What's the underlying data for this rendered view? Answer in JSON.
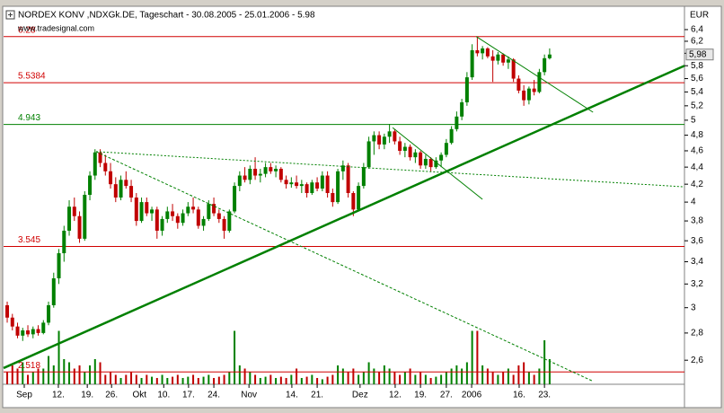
{
  "chart_data": {
    "type": "candlestick",
    "title": "NORDEX KONV ,NDXGk.DE, Tageschart - 30.08.2005 - 25.01.2006 - 5.98",
    "subtitle": "www.tradesignal.com",
    "y_axis_label": "EUR",
    "log_scale": true,
    "up_color": "#008000",
    "down_color": "#c00000",
    "xlim": [
      -0.7,
      131.1
    ],
    "ylim": [
      2.435,
      6.51
    ],
    "yticks": [
      {
        "value": 6.4,
        "label": "6,4"
      },
      {
        "value": 6.2,
        "label": "6,2"
      },
      6,
      {
        "value": 5.8,
        "label": "5,8"
      },
      {
        "value": 5.6,
        "label": "5,6"
      },
      {
        "value": 5.4,
        "label": "5,4"
      },
      {
        "value": 5.2,
        "label": "5,2"
      },
      5,
      {
        "value": 4.8,
        "label": "4,8"
      },
      {
        "value": 4.6,
        "label": "4,6"
      },
      {
        "value": 4.4,
        "label": "4,4"
      },
      {
        "value": 4.2,
        "label": "4,2"
      },
      4,
      {
        "value": 3.8,
        "label": "3,8"
      },
      {
        "value": 3.6,
        "label": "3,6"
      },
      {
        "value": 3.4,
        "label": "3,4"
      },
      {
        "value": 3.2,
        "label": "3,2"
      },
      3,
      {
        "value": 2.8,
        "label": "2,8"
      },
      {
        "value": 2.6,
        "label": "2,6"
      }
    ],
    "xticks": [
      {
        "value": 3.3,
        "label": "Sep"
      },
      {
        "value": 9.9,
        "label": "12."
      },
      {
        "value": 15.5,
        "label": "19."
      },
      {
        "value": 20.2,
        "label": "26."
      },
      {
        "value": 25.6,
        "label": "Okt"
      },
      {
        "value": 30.3,
        "label": "10."
      },
      {
        "value": 35.1,
        "label": "17."
      },
      {
        "value": 40,
        "label": "24."
      },
      {
        "value": 46.8,
        "label": "Nov"
      },
      {
        "value": 55.1,
        "label": "14."
      },
      {
        "value": 60,
        "label": "21."
      },
      {
        "value": 68.3,
        "label": "Dez"
      },
      {
        "value": 75.1,
        "label": "12."
      },
      {
        "value": 80,
        "label": "19."
      },
      {
        "value": 85,
        "label": "27."
      },
      {
        "value": 89.9,
        "label": "2006"
      },
      {
        "value": 99.1,
        "label": "16."
      },
      {
        "value": 104,
        "label": "23."
      }
    ],
    "last_price": {
      "value": 5.98,
      "label": "5,98"
    },
    "levels": [
      {
        "value": 6.28,
        "color": "#d00000"
      },
      {
        "value": 5.5384,
        "color": "#d00000"
      },
      {
        "value": 4.943,
        "color": "#008000"
      },
      {
        "value": 3.545,
        "color": "#d00000"
      },
      {
        "value": 2.518,
        "color": "#d00000"
      }
    ],
    "trendlines": [
      {
        "from": [
          -0.7,
          2.545
        ],
        "to": [
          131.1,
          5.8
        ],
        "color": "#008000",
        "width": 2.5,
        "dash": "none"
      },
      {
        "from": [
          17.2,
          4.59
        ],
        "to": [
          113.4,
          2.455
        ],
        "color": "#008000",
        "width": 1,
        "dash": "3,2"
      },
      {
        "from": [
          17.2,
          4.59
        ],
        "to": [
          131.1,
          4.17
        ],
        "color": "#008000",
        "width": 1,
        "dash": "2,2"
      },
      {
        "from": [
          90.8,
          6.28
        ],
        "to": [
          113.4,
          5.11
        ],
        "color": "#008000",
        "width": 1,
        "dash": "none"
      },
      {
        "from": [
          74.6,
          4.9
        ],
        "to": [
          92,
          4.03
        ],
        "color": "#008000",
        "width": 1,
        "dash": "none"
      }
    ],
    "candles": [
      [
        3.02,
        3.05,
        2.88,
        2.92
      ],
      [
        2.92,
        2.95,
        2.82,
        2.85
      ],
      [
        2.85,
        2.88,
        2.76,
        2.78
      ],
      [
        2.78,
        2.84,
        2.74,
        2.82
      ],
      [
        2.82,
        2.86,
        2.77,
        2.79
      ],
      [
        2.79,
        2.85,
        2.76,
        2.83
      ],
      [
        2.83,
        2.86,
        2.78,
        2.8
      ],
      [
        2.8,
        2.9,
        2.79,
        2.88
      ],
      [
        2.88,
        3.05,
        2.86,
        3.02
      ],
      [
        3.02,
        3.3,
        3,
        3.25
      ],
      [
        3.25,
        3.52,
        3.2,
        3.48
      ],
      [
        3.48,
        3.75,
        3.4,
        3.7
      ],
      [
        3.7,
        4.02,
        3.65,
        3.95
      ],
      [
        3.95,
        4.05,
        3.8,
        3.85
      ],
      [
        3.85,
        3.9,
        3.58,
        3.62
      ],
      [
        3.62,
        4.12,
        3.6,
        4.08
      ],
      [
        4.08,
        4.35,
        4.02,
        4.3
      ],
      [
        4.3,
        4.62,
        4.25,
        4.58
      ],
      [
        4.58,
        4.62,
        4.4,
        4.45
      ],
      [
        4.45,
        4.55,
        4.3,
        4.35
      ],
      [
        4.35,
        4.45,
        4.15,
        4.2
      ],
      [
        4.2,
        4.28,
        4,
        4.05
      ],
      [
        4.05,
        4.3,
        4.02,
        4.25
      ],
      [
        4.25,
        4.35,
        4.15,
        4.18
      ],
      [
        4.18,
        4.25,
        4,
        4.05
      ],
      [
        4.05,
        4.1,
        3.75,
        3.8
      ],
      [
        3.8,
        4.05,
        3.78,
        4
      ],
      [
        4,
        4.05,
        3.85,
        3.88
      ],
      [
        3.88,
        3.95,
        3.8,
        3.92
      ],
      [
        3.92,
        3.95,
        3.62,
        3.7
      ],
      [
        3.7,
        3.85,
        3.65,
        3.82
      ],
      [
        3.82,
        3.95,
        3.78,
        3.9
      ],
      [
        3.9,
        3.98,
        3.8,
        3.85
      ],
      [
        3.85,
        3.88,
        3.72,
        3.78
      ],
      [
        3.78,
        3.92,
        3.75,
        3.88
      ],
      [
        3.88,
        4,
        3.85,
        3.95
      ],
      [
        3.95,
        4.05,
        3.88,
        3.92
      ],
      [
        3.92,
        3.95,
        3.72,
        3.75
      ],
      [
        3.75,
        3.85,
        3.7,
        3.82
      ],
      [
        3.82,
        4.02,
        3.8,
        3.98
      ],
      [
        3.98,
        4.05,
        3.85,
        3.88
      ],
      [
        3.88,
        3.92,
        3.78,
        3.82
      ],
      [
        3.82,
        3.85,
        3.62,
        3.7
      ],
      [
        3.7,
        3.92,
        3.68,
        3.9
      ],
      [
        3.9,
        4.22,
        3.88,
        4.18
      ],
      [
        4.18,
        4.35,
        4.12,
        4.3
      ],
      [
        4.3,
        4.4,
        4.22,
        4.25
      ],
      [
        4.25,
        4.42,
        4.2,
        4.38
      ],
      [
        4.38,
        4.52,
        4.25,
        4.3
      ],
      [
        4.3,
        4.38,
        4.22,
        4.32
      ],
      [
        4.32,
        4.45,
        4.28,
        4.4
      ],
      [
        4.4,
        4.45,
        4.32,
        4.35
      ],
      [
        4.35,
        4.42,
        4.28,
        4.38
      ],
      [
        4.38,
        4.4,
        4.22,
        4.25
      ],
      [
        4.25,
        4.3,
        4.15,
        4.2
      ],
      [
        4.2,
        4.28,
        4.16,
        4.22
      ],
      [
        4.22,
        4.3,
        4.15,
        4.18
      ],
      [
        4.18,
        4.25,
        4.1,
        4.2
      ],
      [
        4.2,
        4.22,
        4.05,
        4.1
      ],
      [
        4.1,
        4.25,
        4.08,
        4.22
      ],
      [
        4.22,
        4.28,
        4.12,
        4.15
      ],
      [
        4.15,
        4.35,
        4.12,
        4.3
      ],
      [
        4.3,
        4.35,
        4.05,
        4.1
      ],
      [
        4.1,
        4.15,
        3.95,
        4
      ],
      [
        4,
        4.38,
        3.98,
        4.35
      ],
      [
        4.35,
        4.48,
        4.25,
        4.42
      ],
      [
        4.42,
        4.45,
        4.05,
        4.1
      ],
      [
        4.1,
        4.12,
        3.85,
        3.92
      ],
      [
        3.92,
        4.22,
        3.9,
        4.18
      ],
      [
        4.18,
        4.45,
        4.15,
        4.4
      ],
      [
        4.4,
        4.78,
        4.38,
        4.72
      ],
      [
        4.72,
        4.85,
        4.55,
        4.8
      ],
      [
        4.8,
        4.85,
        4.62,
        4.68
      ],
      [
        4.68,
        4.82,
        4.62,
        4.78
      ],
      [
        4.78,
        4.95,
        4.7,
        4.85
      ],
      [
        4.85,
        4.88,
        4.68,
        4.72
      ],
      [
        4.72,
        4.78,
        4.55,
        4.6
      ],
      [
        4.6,
        4.7,
        4.52,
        4.65
      ],
      [
        4.65,
        4.68,
        4.48,
        4.52
      ],
      [
        4.52,
        4.62,
        4.45,
        4.58
      ],
      [
        4.58,
        4.6,
        4.38,
        4.42
      ],
      [
        4.42,
        4.55,
        4.38,
        4.5
      ],
      [
        4.5,
        4.52,
        4.35,
        4.4
      ],
      [
        4.4,
        4.52,
        4.38,
        4.48
      ],
      [
        4.48,
        4.58,
        4.4,
        4.55
      ],
      [
        4.55,
        4.75,
        4.52,
        4.7
      ],
      [
        4.7,
        4.92,
        4.68,
        4.88
      ],
      [
        4.88,
        5.12,
        4.85,
        5.05
      ],
      [
        5.05,
        5.3,
        5,
        5.25
      ],
      [
        5.25,
        5.7,
        5.2,
        5.62
      ],
      [
        5.62,
        6.15,
        5.58,
        6.05
      ],
      [
        6.05,
        6.28,
        5.95,
        6
      ],
      [
        6,
        6.12,
        5.9,
        6.08
      ],
      [
        6.08,
        6.1,
        5.92,
        5.95
      ],
      [
        5.95,
        6.05,
        5.55,
        5.88
      ],
      [
        5.88,
        6.02,
        5.82,
        5.98
      ],
      [
        5.98,
        6,
        5.8,
        5.85
      ],
      [
        5.85,
        5.95,
        5.75,
        5.9
      ],
      [
        5.9,
        5.92,
        5.55,
        5.6
      ],
      [
        5.6,
        5.65,
        5.38,
        5.42
      ],
      [
        5.42,
        5.5,
        5.2,
        5.28
      ],
      [
        5.28,
        5.48,
        5.22,
        5.45
      ],
      [
        5.45,
        5.58,
        5.35,
        5.4
      ],
      [
        5.4,
        5.75,
        5.38,
        5.7
      ],
      [
        5.7,
        5.98,
        5.65,
        5.92
      ],
      [
        5.92,
        6.08,
        5.9,
        5.98
      ]
    ],
    "volume_lim": [
      0,
      100
    ],
    "volume": [
      20,
      30,
      25,
      35,
      15,
      20,
      25,
      25,
      45,
      30,
      85,
      40,
      35,
      25,
      30,
      20,
      30,
      40,
      35,
      15,
      20,
      15,
      10,
      15,
      20,
      15,
      10,
      15,
      12,
      10,
      15,
      10,
      12,
      15,
      10,
      12,
      15,
      10,
      12,
      15,
      10,
      12,
      15,
      20,
      85,
      30,
      25,
      20,
      15,
      10,
      12,
      15,
      10,
      12,
      10,
      15,
      25,
      10,
      12,
      15,
      10,
      8,
      12,
      15,
      30,
      25,
      20,
      25,
      15,
      20,
      35,
      25,
      20,
      30,
      25,
      20,
      15,
      20,
      25,
      15,
      20,
      15,
      10,
      12,
      15,
      20,
      25,
      30,
      25,
      35,
      85,
      85,
      30,
      25,
      20,
      15,
      20,
      25,
      15,
      30,
      35,
      20,
      15,
      25,
      70,
      40
    ]
  }
}
